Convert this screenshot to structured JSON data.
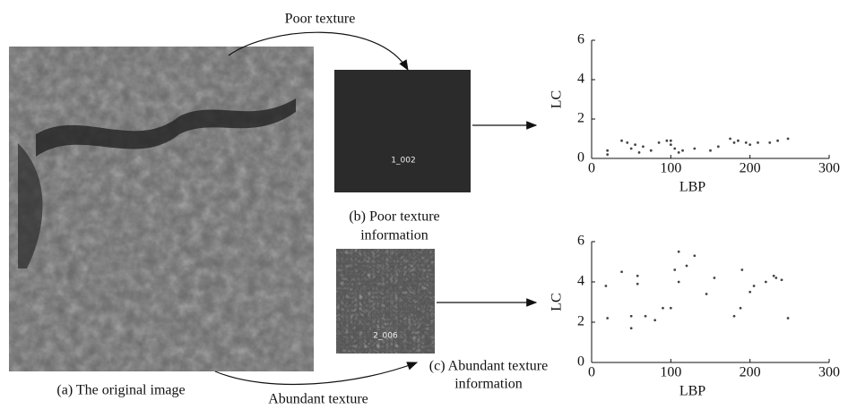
{
  "chart_data": [
    {
      "type": "scatter",
      "x_label": "LBP",
      "y_label": "LC",
      "x": [
        20,
        20,
        38,
        45,
        50,
        55,
        60,
        65,
        75,
        85,
        95,
        100,
        100,
        105,
        110,
        115,
        130,
        150,
        160,
        175,
        180,
        185,
        195,
        200,
        210,
        225,
        235,
        248
      ],
      "values": [
        0.2,
        0.4,
        0.9,
        0.8,
        0.5,
        0.7,
        0.3,
        0.6,
        0.4,
        0.8,
        0.9,
        0.9,
        0.7,
        0.5,
        0.3,
        0.4,
        0.5,
        0.4,
        0.6,
        1.0,
        0.8,
        0.9,
        0.8,
        0.7,
        0.8,
        0.8,
        0.9,
        1.0
      ],
      "color": "#444444",
      "xlim": [
        0,
        300
      ],
      "ylim": [
        0,
        6
      ],
      "xticks": [
        0,
        100,
        200,
        300
      ],
      "yticks": [
        0,
        2,
        4,
        6
      ]
    },
    {
      "type": "scatter",
      "x_label": "LBP",
      "y_label": "LC",
      "x": [
        18,
        20,
        38,
        50,
        50,
        58,
        58,
        68,
        80,
        90,
        100,
        105,
        110,
        110,
        120,
        130,
        145,
        155,
        180,
        188,
        190,
        200,
        205,
        220,
        230,
        233,
        240,
        248
      ],
      "values": [
        3.8,
        2.2,
        4.5,
        2.3,
        1.7,
        4.3,
        3.9,
        2.3,
        2.1,
        2.7,
        2.7,
        4.6,
        5.5,
        4.0,
        4.8,
        5.3,
        3.4,
        4.2,
        2.3,
        2.7,
        4.6,
        3.5,
        3.8,
        4.0,
        4.3,
        4.2,
        4.1,
        2.2
      ],
      "color": "#444444",
      "xlim": [
        0,
        300
      ],
      "ylim": [
        0,
        6
      ],
      "xticks": [
        0,
        100,
        200,
        300
      ],
      "yticks": [
        0,
        2,
        4,
        6
      ]
    }
  ],
  "labels": {
    "poor": "Poor texture",
    "abundant": "Abundant texture",
    "a": "(a) The original image",
    "b": [
      "(b) Poor texture",
      "information"
    ],
    "c": [
      "(c) Abundant texture",
      "information"
    ],
    "b_tag": "1_002",
    "c_tag": "2_006"
  }
}
